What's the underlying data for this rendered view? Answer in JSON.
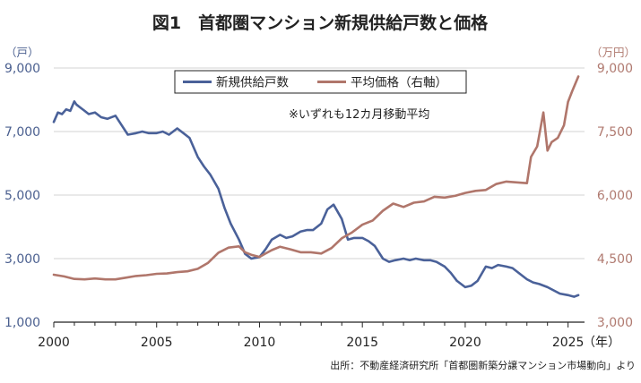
{
  "chart_data": {
    "type": "line",
    "title": "図1　首都圏マンション新規供給戸数と価格",
    "left_axis": {
      "unit": "（戸）",
      "ylim": [
        1000,
        9000
      ],
      "ticks": [
        "9,000",
        "7,000",
        "5,000",
        "3,000",
        "1,000"
      ]
    },
    "right_axis": {
      "unit": "（万円）",
      "ylim": [
        3000,
        9000
      ],
      "ticks": [
        "9,000",
        "7,500",
        "6,000",
        "4,500",
        "3,000"
      ]
    },
    "x_axis": {
      "range": [
        2000,
        2025.8
      ],
      "ticks": [
        "2000",
        "2005",
        "2010",
        "2015",
        "2020",
        "2025"
      ],
      "unit": "（年）"
    },
    "legend": {
      "placement": "top-center",
      "boxed": true
    },
    "annotation": "※いずれも12カ月移動平均",
    "source": "出所：不動産経済研究所「首都圏新築分譲マンション市場動向」より",
    "series": [
      {
        "name": "新規供給戸数",
        "axis": "left",
        "color": "#4a6199",
        "x": [
          2000,
          2000.2,
          2000.4,
          2000.6,
          2000.8,
          2001.0,
          2001.1,
          2001.3,
          2001.5,
          2001.7,
          2002.0,
          2002.3,
          2002.6,
          2003.0,
          2003.3,
          2003.6,
          2004.0,
          2004.3,
          2004.6,
          2005.0,
          2005.3,
          2005.6,
          2006.0,
          2006.3,
          2006.6,
          2007.0,
          2007.3,
          2007.6,
          2008.0,
          2008.3,
          2008.6,
          2009.0,
          2009.3,
          2009.6,
          2010.0,
          2010.3,
          2010.6,
          2011.0,
          2011.3,
          2011.6,
          2012.0,
          2012.3,
          2012.6,
          2013.0,
          2013.3,
          2013.6,
          2014.0,
          2014.3,
          2014.6,
          2015.0,
          2015.3,
          2015.6,
          2016.0,
          2016.3,
          2016.6,
          2017.0,
          2017.3,
          2017.6,
          2018.0,
          2018.3,
          2018.6,
          2019.0,
          2019.3,
          2019.6,
          2020.0,
          2020.3,
          2020.6,
          2021.0,
          2021.3,
          2021.6,
          2022.0,
          2022.3,
          2022.6,
          2023.0,
          2023.3,
          2023.6,
          2024.0,
          2024.3,
          2024.6,
          2025.0,
          2025.3,
          2025.5
        ],
        "values": [
          7300,
          7600,
          7550,
          7700,
          7650,
          7950,
          7850,
          7750,
          7650,
          7550,
          7600,
          7450,
          7400,
          7500,
          7200,
          6900,
          6950,
          7000,
          6950,
          6950,
          7000,
          6900,
          7100,
          6950,
          6800,
          6200,
          5900,
          5650,
          5200,
          4600,
          4100,
          3600,
          3150,
          3000,
          3050,
          3300,
          3600,
          3750,
          3650,
          3700,
          3850,
          3900,
          3900,
          4100,
          4550,
          4700,
          4250,
          3600,
          3650,
          3650,
          3550,
          3400,
          3000,
          2900,
          2950,
          3000,
          2950,
          3000,
          2950,
          2950,
          2900,
          2750,
          2550,
          2300,
          2100,
          2150,
          2300,
          2750,
          2700,
          2800,
          2750,
          2700,
          2550,
          2350,
          2250,
          2200,
          2100,
          2000,
          1900,
          1850,
          1800,
          1850
        ]
      },
      {
        "name": "平均価格（右軸）",
        "axis": "right",
        "color": "#b0766b",
        "x": [
          2000,
          2000.5,
          2001.0,
          2001.5,
          2002.0,
          2002.5,
          2003.0,
          2003.5,
          2004.0,
          2004.5,
          2005.0,
          2005.5,
          2006.0,
          2006.5,
          2007.0,
          2007.5,
          2008.0,
          2008.5,
          2009.0,
          2009.3,
          2009.6,
          2010.0,
          2010.3,
          2010.6,
          2011.0,
          2011.5,
          2012.0,
          2012.5,
          2013.0,
          2013.5,
          2014.0,
          2014.5,
          2015.0,
          2015.5,
          2016.0,
          2016.5,
          2017.0,
          2017.5,
          2018.0,
          2018.5,
          2019.0,
          2019.5,
          2020.0,
          2020.5,
          2021.0,
          2021.5,
          2022.0,
          2022.5,
          2023.0,
          2023.2,
          2023.5,
          2023.8,
          2024.0,
          2024.2,
          2024.5,
          2024.8,
          2025.0,
          2025.2,
          2025.5
        ],
        "values": [
          4120,
          4080,
          4020,
          4010,
          4030,
          4010,
          4010,
          4050,
          4090,
          4110,
          4140,
          4150,
          4180,
          4200,
          4260,
          4400,
          4640,
          4760,
          4790,
          4650,
          4590,
          4540,
          4620,
          4700,
          4780,
          4720,
          4650,
          4650,
          4620,
          4750,
          4980,
          5120,
          5300,
          5400,
          5630,
          5800,
          5720,
          5820,
          5850,
          5960,
          5940,
          5980,
          6050,
          6100,
          6120,
          6260,
          6320,
          6300,
          6280,
          6900,
          7150,
          7950,
          7050,
          7250,
          7350,
          7650,
          8200,
          8450,
          8800
        ]
      }
    ]
  }
}
